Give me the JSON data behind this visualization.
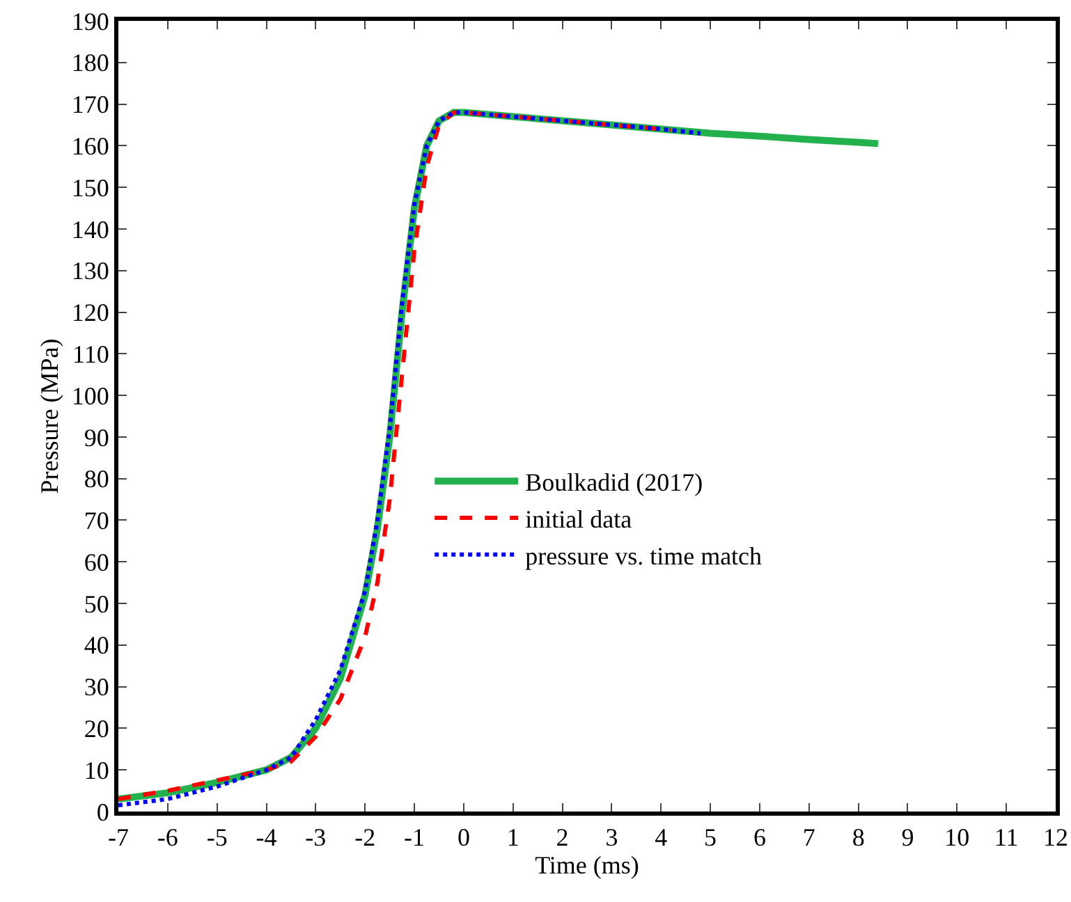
{
  "chart_data": {
    "type": "line",
    "xlabel": "Time (ms)",
    "ylabel": "Pressure (MPa)",
    "xlim": [
      -7,
      12
    ],
    "xticks": [
      -7,
      -6,
      -5,
      -4,
      -3,
      -2,
      -1,
      0,
      1,
      2,
      3,
      4,
      5,
      6,
      7,
      8,
      9,
      10,
      11,
      12
    ],
    "ylim": [
      0,
      190
    ],
    "yticks": [
      0,
      10,
      20,
      30,
      40,
      50,
      60,
      70,
      80,
      90,
      100,
      110,
      120,
      130,
      140,
      150,
      160,
      170,
      180,
      190
    ],
    "grid": false,
    "legend": "right",
    "series": [
      {
        "name": "Boulkadid (2017)",
        "color": "#22b14c",
        "line_style": "solid",
        "x": [
          -7,
          -6,
          -5,
          -4,
          -3.5,
          -3,
          -2.5,
          -2,
          -1.75,
          -1.5,
          -1.25,
          -1,
          -0.75,
          -0.5,
          -0.2,
          0,
          1,
          2,
          3,
          4,
          5,
          6,
          7,
          8,
          8.4
        ],
        "values": [
          3,
          4.5,
          7,
          10,
          13,
          20,
          32,
          52,
          68,
          90,
          120,
          145,
          160,
          166,
          168,
          168,
          167,
          166,
          165,
          164,
          163,
          162.3,
          161.5,
          160.8,
          160.5
        ]
      },
      {
        "name": "initial data",
        "color": "#ff0000",
        "line_style": "dashed",
        "x": [
          -7,
          -6,
          -5,
          -4,
          -3.5,
          -3,
          -2.5,
          -2,
          -1.75,
          -1.5,
          -1.25,
          -1,
          -0.75,
          -0.5,
          -0.2,
          0,
          1,
          2,
          3,
          4,
          4.2
        ],
        "values": [
          3,
          5,
          7.5,
          10,
          12,
          18,
          27,
          42,
          55,
          75,
          105,
          135,
          155,
          165,
          168,
          168,
          167,
          166,
          165,
          164,
          163.8
        ]
      },
      {
        "name": "pressure vs. time match",
        "color": "#0000ff",
        "line_style": "dotted",
        "x": [
          -7,
          -6,
          -5,
          -4,
          -3.5,
          -3,
          -2.5,
          -2,
          -1.75,
          -1.5,
          -1.25,
          -1,
          -0.75,
          -0.5,
          -0.2,
          0,
          1,
          2,
          3,
          4,
          4.8
        ],
        "values": [
          1.5,
          3,
          6,
          10,
          13,
          22,
          34,
          53,
          70,
          92,
          122,
          146,
          160,
          166,
          168,
          168,
          167,
          166,
          165,
          164,
          163
        ]
      }
    ]
  }
}
